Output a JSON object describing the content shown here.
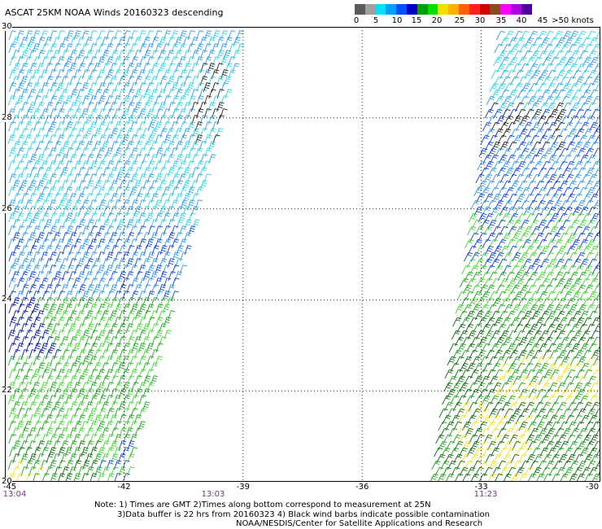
{
  "title": "ASCAT 25KM NOAA Winds 20160323 descending",
  "scale": {
    "colors": [
      "#5a5a5a",
      "#a0a0a0",
      "#00e0ff",
      "#00a0ff",
      "#0050ff",
      "#0000c0",
      "#00a000",
      "#00e000",
      "#f0e000",
      "#ffb000",
      "#ff6000",
      "#ff2020",
      "#d00000",
      "#8a4a20",
      "#ff00ff",
      "#b000e0",
      "#5000a0"
    ],
    "labels": [
      "0",
      "5",
      "10",
      "15",
      "20",
      "25",
      "30",
      "35",
      "40",
      "45",
      ">50 knots"
    ]
  },
  "chart_data": {
    "type": "wind-barb-map",
    "lon_range": [
      -45,
      -30
    ],
    "lat_range": [
      20,
      30
    ],
    "lon_ticks": [
      "-45",
      "-42",
      "-39",
      "-36",
      "-33",
      "-30"
    ],
    "lat_ticks": [
      "30",
      "28",
      "26",
      "24",
      "22",
      "20"
    ],
    "swath_times": [
      "13:04",
      "13:03",
      "11:23"
    ],
    "units": "knots"
  },
  "notes": {
    "line1": "Note: 1) Times are GMT 2)Times along bottom correspond to measurement at 25N",
    "line2": "3)Data buffer is 22 hrs from 20160323 4) Black wind barbs indicate possible contamination",
    "line3": "NOAA/NESDIS/Center for Satellite Applications and Research"
  }
}
